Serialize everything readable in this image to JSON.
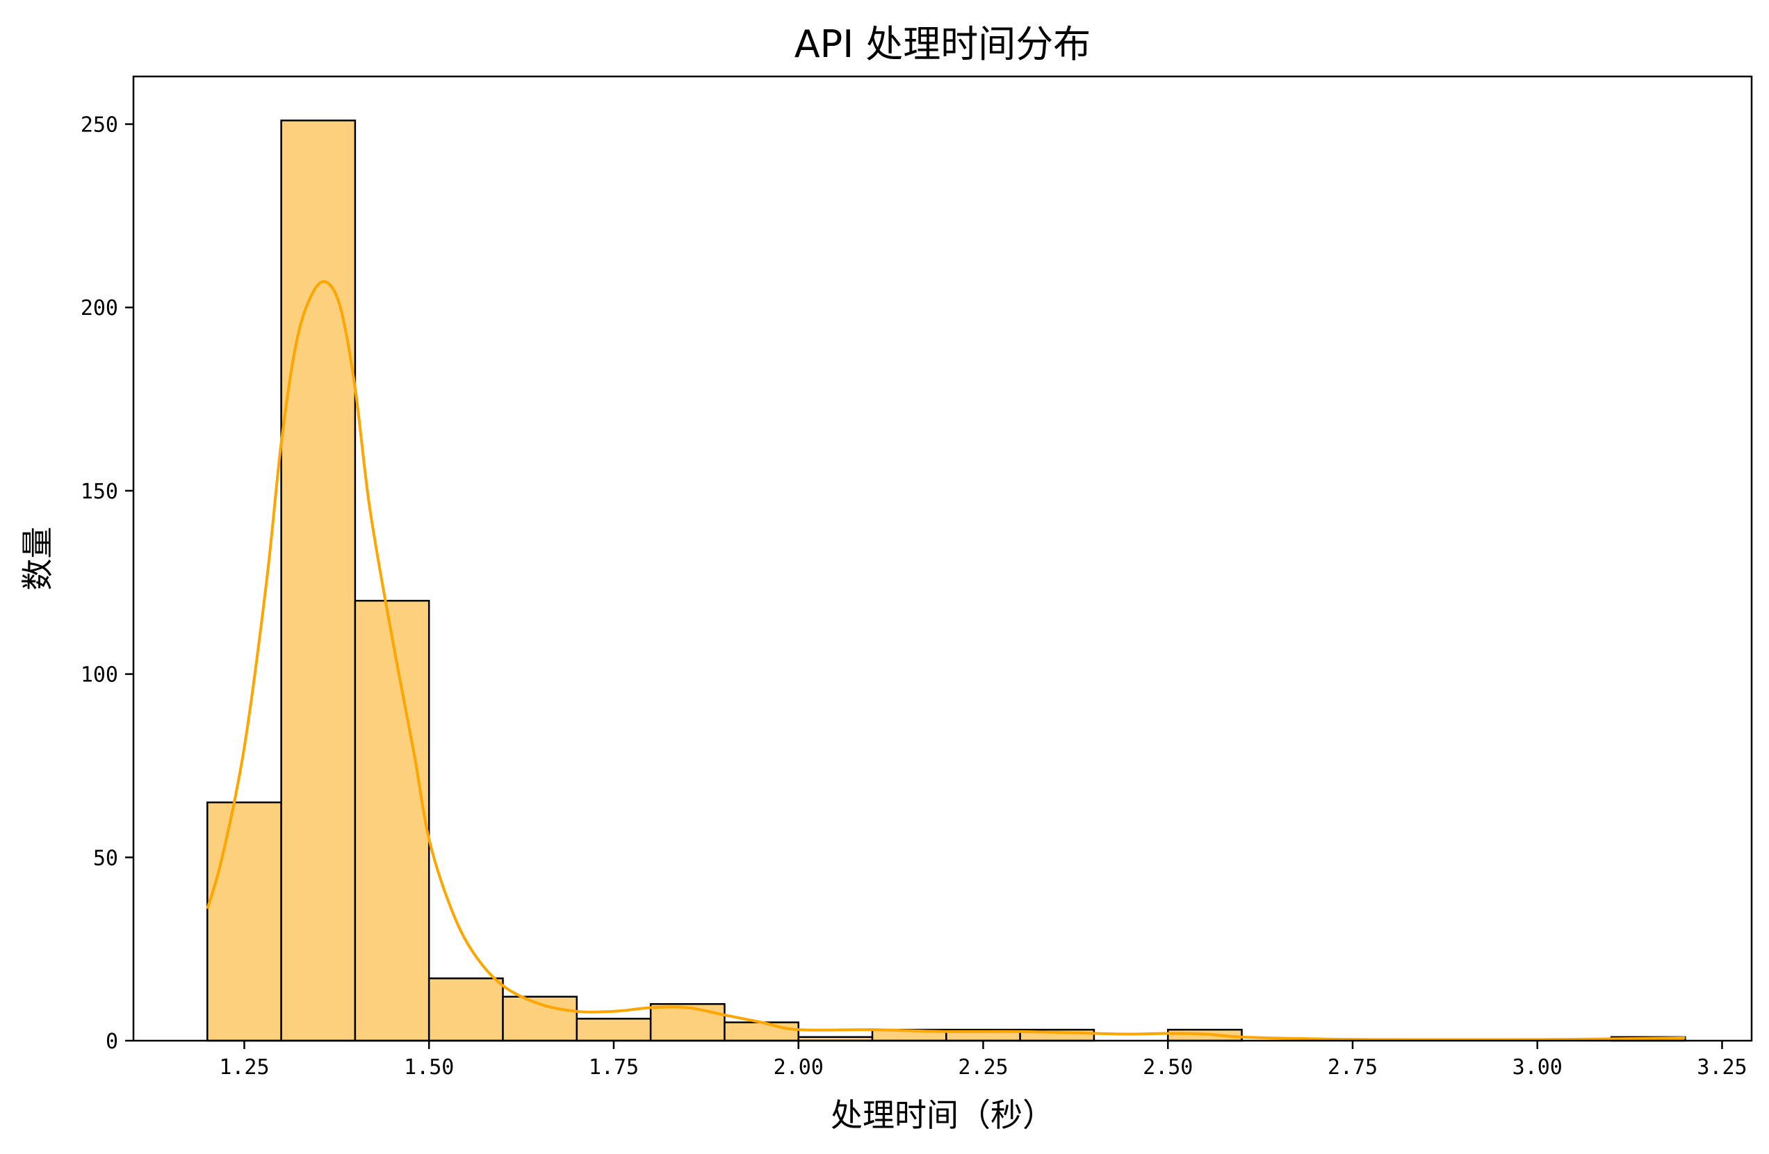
{
  "chart_data": {
    "type": "bar",
    "subtype": "histogram-with-kde",
    "title": "API 处理时间分布",
    "xlabel": "处理时间（秒）",
    "ylabel": "数量",
    "xlim": [
      1.1,
      3.29
    ],
    "ylim": [
      0,
      263
    ],
    "xticks": [
      1.25,
      1.5,
      1.75,
      2.0,
      2.25,
      2.5,
      2.75,
      3.0,
      3.25
    ],
    "xtick_labels": [
      "1.25",
      "1.50",
      "1.75",
      "2.00",
      "2.25",
      "2.50",
      "2.75",
      "3.00",
      "3.25"
    ],
    "yticks": [
      0,
      50,
      100,
      150,
      200,
      250
    ],
    "ytick_labels": [
      "0",
      "50",
      "100",
      "150",
      "200",
      "250"
    ],
    "grid": false,
    "legend": "none",
    "bar_color": "#fdd07e",
    "bar_edge_color": "#000000",
    "kde_color": "#ffa500",
    "bins": [
      {
        "x0": 1.2,
        "x1": 1.3,
        "count": 65
      },
      {
        "x0": 1.3,
        "x1": 1.4,
        "count": 251
      },
      {
        "x0": 1.4,
        "x1": 1.5,
        "count": 120
      },
      {
        "x0": 1.5,
        "x1": 1.6,
        "count": 17
      },
      {
        "x0": 1.6,
        "x1": 1.7,
        "count": 12
      },
      {
        "x0": 1.7,
        "x1": 1.8,
        "count": 6
      },
      {
        "x0": 1.8,
        "x1": 1.9,
        "count": 10
      },
      {
        "x0": 1.9,
        "x1": 2.0,
        "count": 5
      },
      {
        "x0": 2.0,
        "x1": 2.1,
        "count": 1
      },
      {
        "x0": 2.1,
        "x1": 2.2,
        "count": 3
      },
      {
        "x0": 2.2,
        "x1": 2.3,
        "count": 3
      },
      {
        "x0": 2.3,
        "x1": 2.4,
        "count": 3
      },
      {
        "x0": 2.4,
        "x1": 2.5,
        "count": 0
      },
      {
        "x0": 2.5,
        "x1": 2.6,
        "count": 3
      },
      {
        "x0": 2.6,
        "x1": 2.7,
        "count": 0
      },
      {
        "x0": 2.7,
        "x1": 2.8,
        "count": 0
      },
      {
        "x0": 2.8,
        "x1": 2.9,
        "count": 0
      },
      {
        "x0": 2.9,
        "x1": 3.0,
        "count": 0
      },
      {
        "x0": 3.0,
        "x1": 3.1,
        "count": 0
      },
      {
        "x0": 3.1,
        "x1": 3.2,
        "count": 1
      }
    ],
    "kde": {
      "x": [
        1.2,
        1.22,
        1.25,
        1.28,
        1.3,
        1.32,
        1.34,
        1.36,
        1.38,
        1.4,
        1.42,
        1.45,
        1.48,
        1.5,
        1.53,
        1.56,
        1.6,
        1.65,
        1.7,
        1.75,
        1.8,
        1.85,
        1.9,
        1.95,
        2.0,
        2.1,
        2.2,
        2.3,
        2.4,
        2.45,
        2.5,
        2.55,
        2.6,
        2.7,
        2.8,
        3.0,
        3.1,
        3.2
      ],
      "y": [
        36,
        50,
        80,
        125,
        163,
        190,
        203,
        207,
        200,
        178,
        145,
        110,
        78,
        55,
        36,
        24,
        15,
        10,
        8,
        8,
        9,
        9,
        7,
        5,
        3,
        3,
        2.5,
        2.5,
        2,
        1.8,
        2,
        1.8,
        1,
        0.5,
        0.3,
        0.3,
        0.5,
        0.8
      ]
    }
  }
}
